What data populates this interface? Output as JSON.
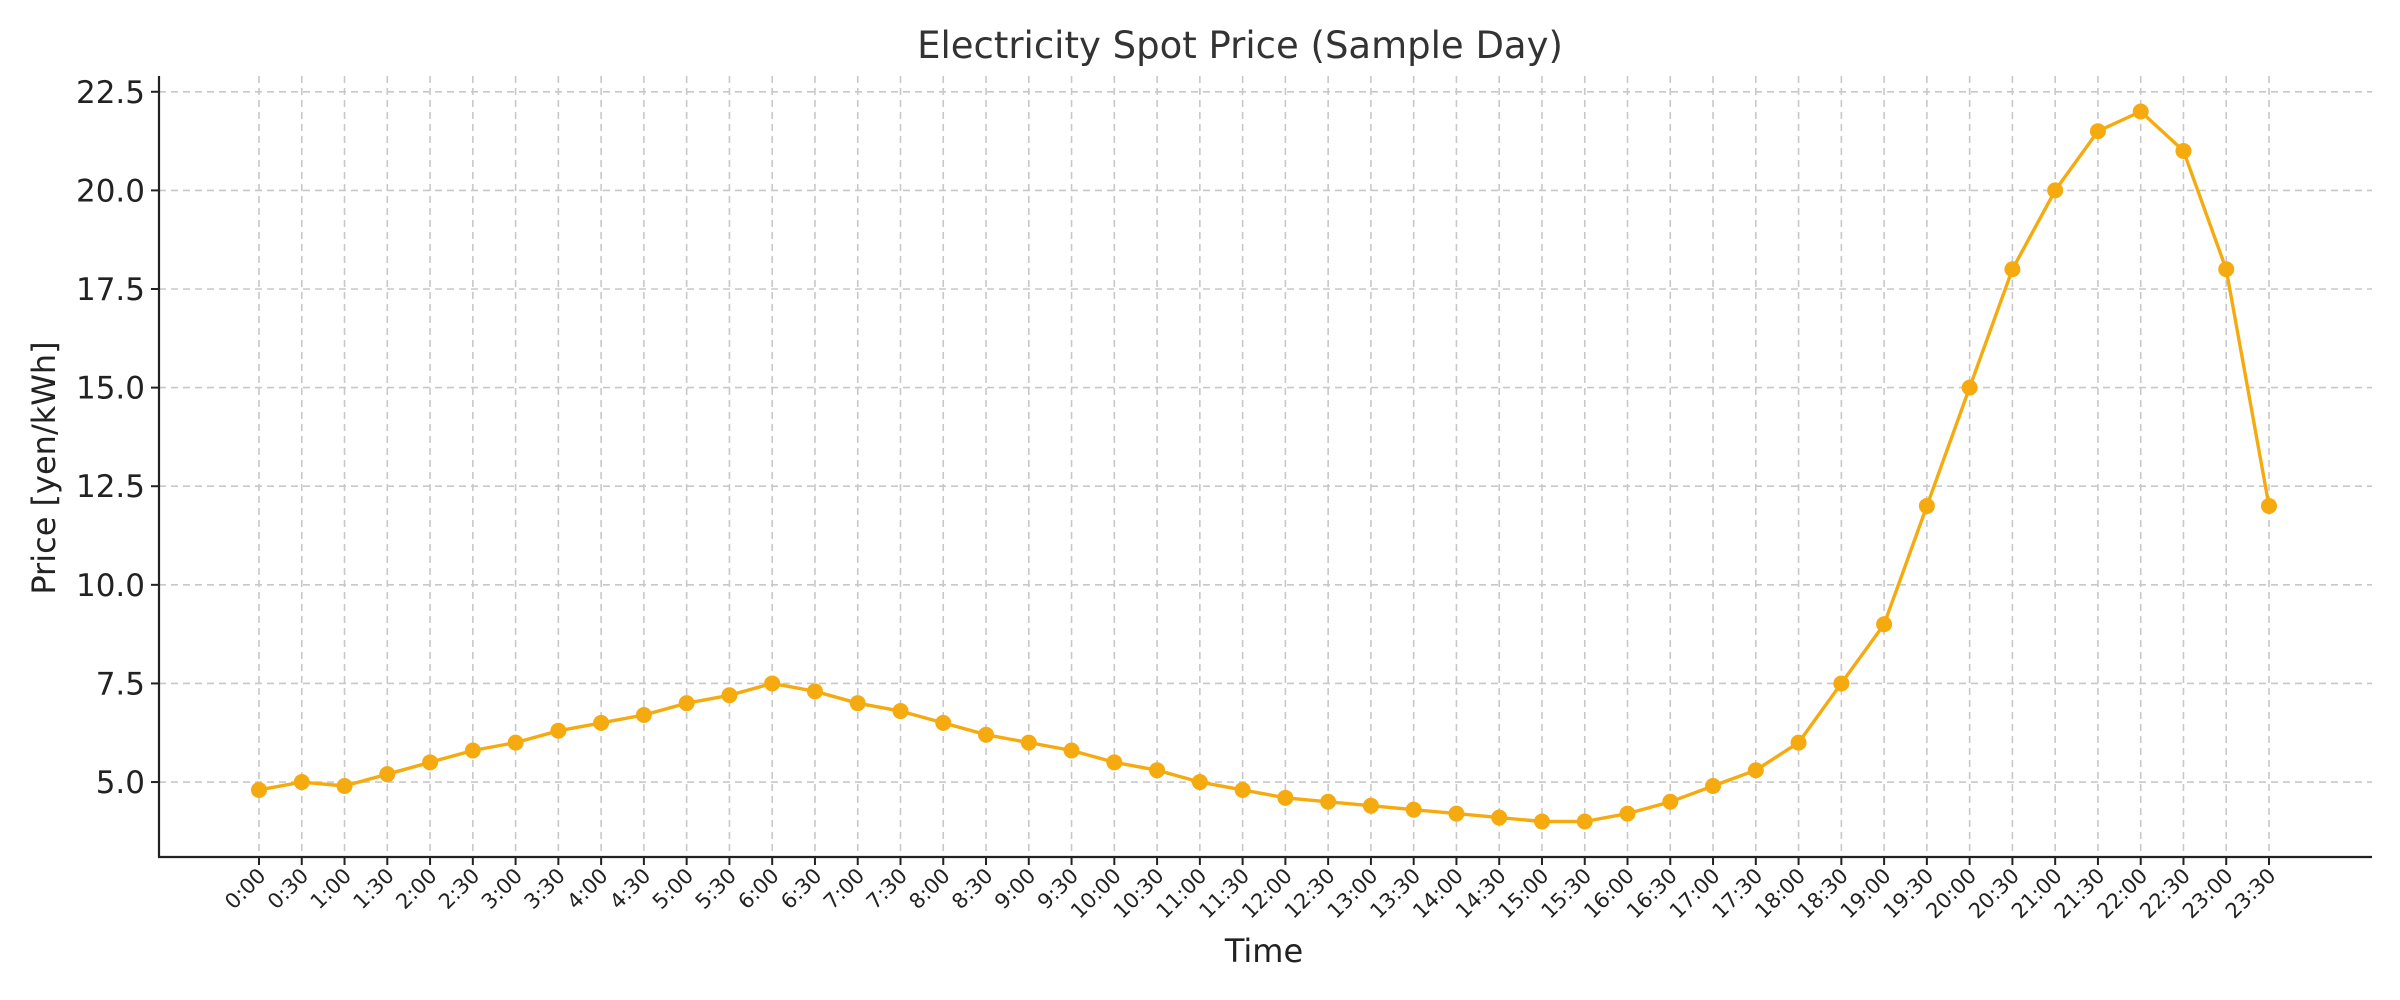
{
  "chart_data": {
    "type": "line",
    "title": "Electricity Spot Price (Sample Day)",
    "xlabel": "Time",
    "ylabel": "Price [yen/kWh]",
    "categories": [
      "0:00",
      "0:30",
      "1:00",
      "1:30",
      "2:00",
      "2:30",
      "3:00",
      "3:30",
      "4:00",
      "4:30",
      "5:00",
      "5:30",
      "6:00",
      "6:30",
      "7:00",
      "7:30",
      "8:00",
      "8:30",
      "9:00",
      "9:30",
      "10:00",
      "10:30",
      "11:00",
      "11:30",
      "12:00",
      "12:30",
      "13:00",
      "13:30",
      "14:00",
      "14:30",
      "15:00",
      "15:30",
      "16:00",
      "16:30",
      "17:00",
      "17:30",
      "18:00",
      "18:30",
      "19:00",
      "19:30",
      "20:00",
      "20:30",
      "21:00",
      "21:30",
      "22:00",
      "22:30",
      "23:00",
      "23:30"
    ],
    "values": [
      4.8,
      5.0,
      4.9,
      5.2,
      5.5,
      5.8,
      6.0,
      6.3,
      6.5,
      6.7,
      7.0,
      7.2,
      7.5,
      7.3,
      7.0,
      6.8,
      6.5,
      6.2,
      6.0,
      5.8,
      5.5,
      5.3,
      5.0,
      4.8,
      4.6,
      4.5,
      4.4,
      4.3,
      4.2,
      4.1,
      4.0,
      4.0,
      4.2,
      4.5,
      4.9,
      5.3,
      6.0,
      7.5,
      9.0,
      12.0,
      15.0,
      18.0,
      20.0,
      21.5,
      22.0,
      21.0,
      18.0,
      12.0
    ],
    "ylim": [
      3.1,
      22.9
    ],
    "yticks": [
      5.0,
      7.5,
      10.0,
      12.5,
      15.0,
      17.5,
      20.0,
      22.5
    ],
    "ytick_labels": [
      "5.0",
      "7.5",
      "10.0",
      "12.5",
      "15.0",
      "17.5",
      "20.0",
      "22.5"
    ],
    "grid": true,
    "line_color": "#f5ab0f"
  }
}
